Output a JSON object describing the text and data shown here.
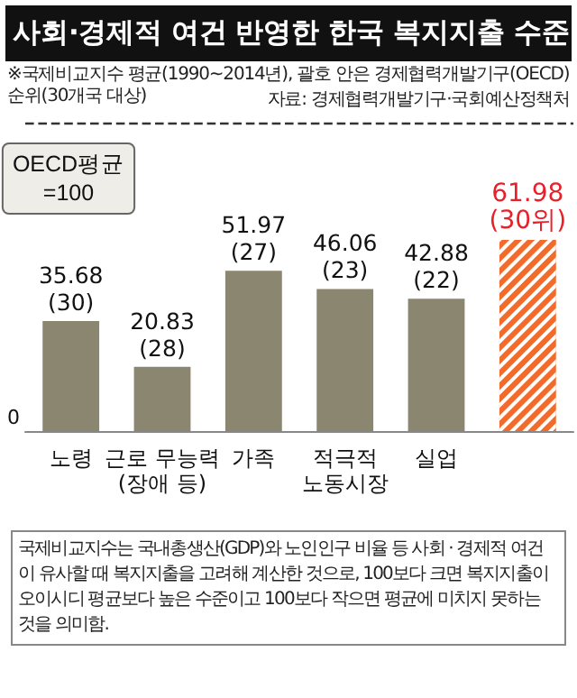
{
  "chart_data": {
    "type": "bar",
    "title": "사회·경제적 여건 반영한 한국 복지지출 수준",
    "subtitle": "※국제비교지수 평균(1990~2014년), 괄호 안은 경제협력개발기구(OECD) 순위(30개국 대상)",
    "annotations": [
      "자료: 경제협력개발기구·국회예산정책처",
      "0",
      "국제비교지수는 국내총생산(GDP)와 노인인구 비율 등 사회 · 경제적 여건이 유사할 때 복지지출을 고려해 계산한 것으로, 100보다 크면 복지지출이 오이시디 평균보다 높은 수준이고 100보다 작으면 평균에 미치지 못하는 것을 의미함."
    ],
    "categories": [
      "노령",
      "근로 무능력\n(장애 등)",
      "가족",
      "적극적\n노동시장",
      "실업",
      null
    ],
    "values": [
      35.68,
      20.83,
      51.97,
      46.06,
      42.88,
      61.98
    ],
    "colors": [
      "#8a8670",
      "#8a8670",
      "#8a8670",
      "#8a8670",
      "#8a8670",
      "#f26b2a"
    ],
    "value_labels": [
      "35.68\n(30)",
      "20.83\n(28)",
      "51.97\n(27)",
      "46.06\n(23)",
      "42.88\n(22)",
      "61.98\n(30위)"
    ],
    "ref_lines": [
      {
        "axis": "y",
        "value": 100,
        "label": "OECD평균\n=100",
        "line_style": "dashed",
        "color": "#333333"
      }
    ],
    "ylim": [
      0,
      100
    ],
    "grid": false
  }
}
